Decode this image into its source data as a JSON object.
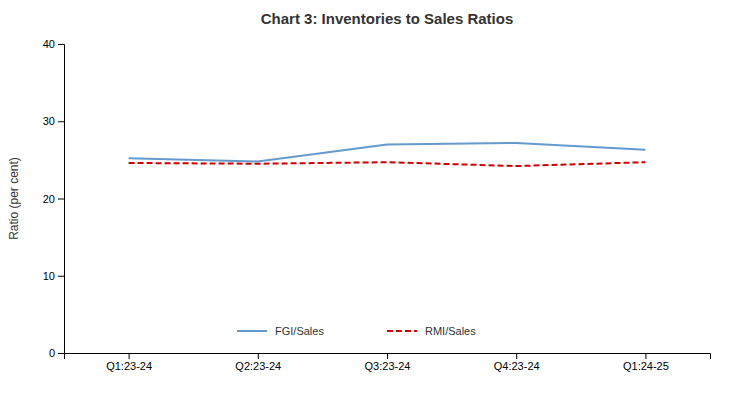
{
  "chart_data": {
    "type": "line",
    "title": "Chart 3: Inventories to Sales Ratios",
    "ylabel": "Ratio (per cent)",
    "categories": [
      "Q1:23-24",
      "Q2:23-24",
      "Q3:23-24",
      "Q4:23-24",
      "Q1:24-25"
    ],
    "series": [
      {
        "name": "FGI/Sales",
        "color": "#6699CC",
        "line_style": "solid",
        "values": [
          25.2,
          24.8,
          27.0,
          27.2,
          26.3
        ]
      },
      {
        "name": "RMI/Sales",
        "color": "#CC0000",
        "line_style": "dashed",
        "values": [
          24.6,
          24.5,
          24.7,
          24.2,
          24.7
        ]
      }
    ],
    "ylim": [
      0,
      40
    ],
    "yticks": [
      0,
      10,
      20,
      30,
      40
    ],
    "grid": false,
    "legend": "bottom"
  }
}
